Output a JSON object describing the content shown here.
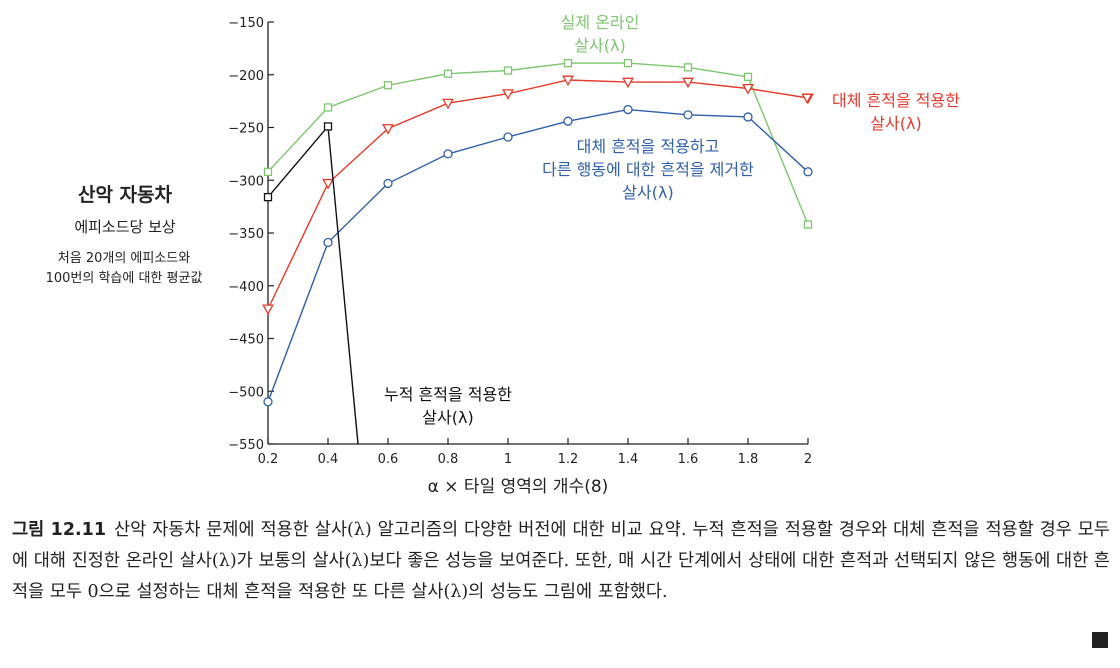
{
  "y_axis_label": {
    "title": "산악 자동차",
    "subtitle": "에피소드당 보상",
    "note_line1": "처음 20개의 에피소드와",
    "note_line2": "100번의 학습에 대한 평균값"
  },
  "caption": {
    "figure_number": "그림 12.11",
    "text": "산악 자동차 문제에 적용한 살사(λ) 알고리즘의 다양한 버전에 대한 비교 요약. 누적 흔적을 적용할 경우와 대체 흔적을 적용할 경우 모두에 대해 진정한 온라인 살사(λ)가 보통의 살사(λ)보다 좋은 성능을 보여준다. 또한, 매 시간 단계에서 상태에 대한 흔적과 선택되지 않은 행동에 대한 흔적을 모두 0으로 설정하는 대체 흔적을 적용한 또 다른 살사(λ)의 성능도 그림에 포함했다."
  },
  "chart_data": {
    "type": "line",
    "title": "",
    "xlabel": "α × 타일 영역의 개수(8)",
    "ylabel": "산악 자동차 에피소드당 보상",
    "xlim": [
      0.2,
      2.0
    ],
    "ylim": [
      -550,
      -150
    ],
    "xticks": [
      "0.2",
      "0.4",
      "0.6",
      "0.8",
      "1",
      "1.2",
      "1.4",
      "1.6",
      "1.8",
      "2"
    ],
    "yticks": [
      "−150",
      "−200",
      "−250",
      "−300",
      "−350",
      "−400",
      "−450",
      "−500",
      "−550"
    ],
    "series": [
      {
        "name": "true-online",
        "label_lines": [
          "실제 온라인",
          "살사(λ)"
        ],
        "color": "#7dc66f",
        "marker": "square",
        "x": [
          0.2,
          0.4,
          0.6,
          0.8,
          1.0,
          1.2,
          1.4,
          1.6,
          1.8,
          2.0
        ],
        "y": [
          -292,
          -231,
          -210,
          -199,
          -196,
          -189,
          -189,
          -193,
          -202,
          -342
        ]
      },
      {
        "name": "replacing",
        "label_lines": [
          "대체 흔적을 적용한",
          "살사(λ)"
        ],
        "color": "#e53a2c",
        "marker": "triangle-down",
        "x": [
          0.2,
          0.4,
          0.6,
          0.8,
          1.0,
          1.2,
          1.4,
          1.6,
          1.8,
          2.0
        ],
        "y": [
          -422,
          -303,
          -251,
          -227,
          -218,
          -205,
          -207,
          -207,
          -213,
          -222
        ]
      },
      {
        "name": "replacing-clearing",
        "label_lines": [
          "대체 흔적을 적용하고",
          "다른 행동에 대한 흔적을 제거한",
          "살사(λ)"
        ],
        "color": "#2f5fa9",
        "marker": "circle",
        "x": [
          0.2,
          0.4,
          0.6,
          0.8,
          1.0,
          1.2,
          1.4,
          1.6,
          1.8,
          2.0
        ],
        "y": [
          -510,
          -359,
          -303,
          -275,
          -259,
          -244,
          -233,
          -238,
          -240,
          -292
        ]
      },
      {
        "name": "accumulating",
        "label_lines": [
          "누적 흔적을 적용한",
          "살사(λ)"
        ],
        "color": "#111111",
        "marker": "square",
        "x": [
          0.2,
          0.4,
          0.5
        ],
        "y": [
          -316,
          -249,
          -550
        ]
      }
    ]
  }
}
